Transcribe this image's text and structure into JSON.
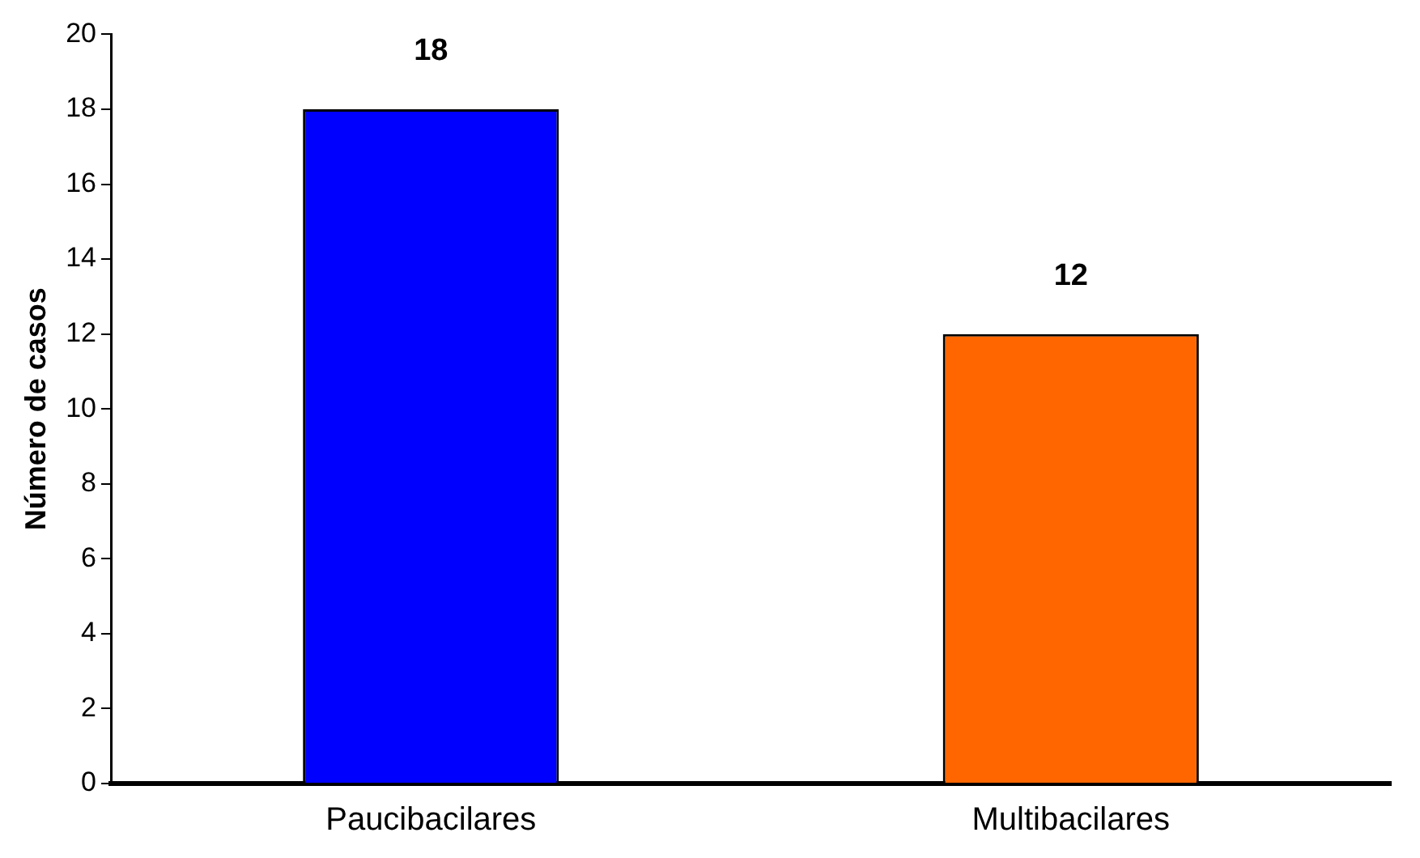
{
  "chart_data": {
    "type": "bar",
    "ylabel": "Número de casos",
    "categories": [
      "Paucibacilares",
      "Multibacilares"
    ],
    "values": [
      18,
      12
    ],
    "colors": [
      "#0000ff",
      "#ff6600"
    ],
    "ylim": [
      0,
      20
    ],
    "yticks": [
      0,
      2,
      4,
      6,
      8,
      10,
      12,
      14,
      16,
      18,
      20
    ],
    "grid": false,
    "legend": false,
    "data_labels": true
  }
}
